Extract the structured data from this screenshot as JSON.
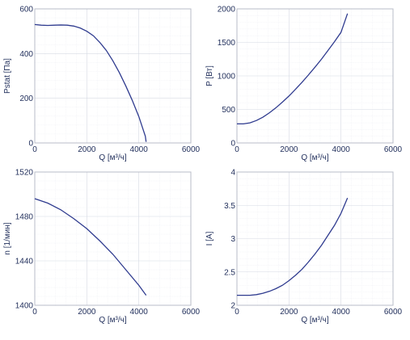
{
  "chart_data": [
    {
      "type": "line",
      "xlabel": "Q [м³/ч]",
      "ylabel": "Pstat [Па]",
      "xlim": [
        0,
        6000
      ],
      "ylim": [
        0,
        600
      ],
      "xticks": [
        0,
        2000,
        4000,
        6000
      ],
      "yticks": [
        0,
        200,
        400,
        600
      ],
      "x_tick_labels": [
        "0",
        "2000",
        "4000",
        "6000"
      ],
      "y_tick_labels": [
        "0",
        "200",
        "400",
        "600"
      ],
      "grid": true,
      "series": [
        {
          "color": "#2f3b8f",
          "x": [
            0,
            250,
            500,
            750,
            1000,
            1250,
            1500,
            1750,
            2000,
            2250,
            2500,
            2750,
            3000,
            3250,
            3500,
            3750,
            4000,
            4250,
            4280
          ],
          "y": [
            530,
            527,
            526,
            527,
            528,
            527,
            523,
            514,
            500,
            480,
            450,
            414,
            368,
            315,
            255,
            190,
            118,
            30,
            5
          ]
        }
      ]
    },
    {
      "type": "line",
      "xlabel": "Q [м³/ч]",
      "ylabel": "P [Вт]",
      "xlim": [
        0,
        6000
      ],
      "ylim": [
        0,
        2000
      ],
      "xticks": [
        0,
        2000,
        4000,
        6000
      ],
      "yticks": [
        0,
        500,
        1000,
        1500,
        2000
      ],
      "x_tick_labels": [
        "0",
        "2000",
        "4000",
        "6000"
      ],
      "y_tick_labels": [
        "0",
        "500",
        "1000",
        "1500",
        "2000"
      ],
      "grid": true,
      "series": [
        {
          "color": "#2f3b8f",
          "x": [
            0,
            250,
            500,
            750,
            1000,
            1250,
            1500,
            1750,
            2000,
            2250,
            2500,
            2750,
            3000,
            3250,
            3500,
            3750,
            4000,
            4250
          ],
          "y": [
            285,
            285,
            300,
            335,
            385,
            450,
            525,
            610,
            700,
            800,
            905,
            1015,
            1130,
            1250,
            1380,
            1510,
            1650,
            1930
          ]
        }
      ]
    },
    {
      "type": "line",
      "xlabel": "Q [м³/ч]",
      "ylabel": "n [1/мин]",
      "xlim": [
        0,
        6000
      ],
      "ylim": [
        1400,
        1520
      ],
      "xticks": [
        0,
        2000,
        4000,
        6000
      ],
      "yticks": [
        1400,
        1440,
        1480,
        1520
      ],
      "x_tick_labels": [
        "0",
        "2000",
        "4000",
        "6000"
      ],
      "y_tick_labels": [
        "1400",
        "1440",
        "1480",
        "1520"
      ],
      "grid": true,
      "series": [
        {
          "color": "#2f3b8f",
          "x": [
            0,
            500,
            1000,
            1500,
            2000,
            2500,
            3000,
            3500,
            4000,
            4280
          ],
          "y": [
            1496,
            1492,
            1486,
            1478,
            1469,
            1458,
            1446,
            1432,
            1418,
            1409
          ]
        }
      ]
    },
    {
      "type": "line",
      "xlabel": "Q [м³/ч]",
      "ylabel": "I [A]",
      "xlim": [
        0,
        6000
      ],
      "ylim": [
        2,
        4
      ],
      "xticks": [
        0,
        2000,
        4000,
        6000
      ],
      "yticks": [
        2,
        2.5,
        3,
        3.5,
        4
      ],
      "x_tick_labels": [
        "0",
        "2000",
        "4000",
        "6000"
      ],
      "y_tick_labels": [
        "2",
        "2.5",
        "3",
        "3.5",
        "4"
      ],
      "grid": true,
      "series": [
        {
          "color": "#2f3b8f",
          "x": [
            0,
            250,
            500,
            750,
            1000,
            1250,
            1500,
            1750,
            2000,
            2250,
            2500,
            2750,
            3000,
            3250,
            3500,
            3750,
            4000,
            4250
          ],
          "y": [
            2.15,
            2.15,
            2.15,
            2.16,
            2.18,
            2.21,
            2.25,
            2.3,
            2.37,
            2.45,
            2.54,
            2.65,
            2.77,
            2.9,
            3.05,
            3.2,
            3.38,
            3.61
          ]
        }
      ]
    }
  ]
}
